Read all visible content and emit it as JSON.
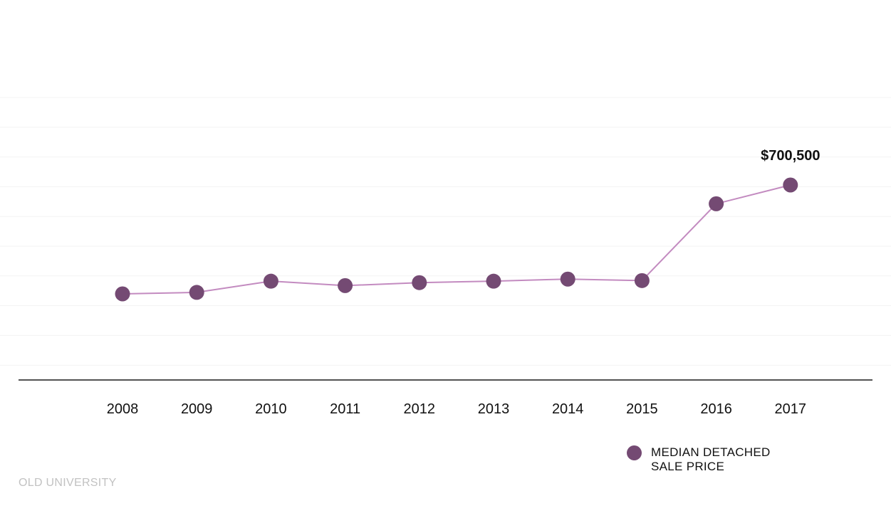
{
  "chart_data": {
    "type": "line",
    "x": [
      "2008",
      "2009",
      "2010",
      "2011",
      "2012",
      "2013",
      "2014",
      "2015",
      "2016",
      "2017"
    ],
    "series": [
      {
        "name": "MEDIAN DETACHED SALE PRICE",
        "values": [
          332000,
          337000,
          375000,
          360000,
          370000,
          375000,
          382000,
          377000,
          637000,
          700500
        ]
      }
    ],
    "annotations": [
      {
        "x": "2017",
        "text": "$700,500"
      }
    ],
    "legend": {
      "placement": "bottom-right",
      "label": "MEDIAN DETACHED SALE PRICE"
    },
    "grid": true,
    "colors": {
      "marker": "#744a73",
      "line": "#c38bc0",
      "grid": "#f3f3f3",
      "axis": "#1a1a1a"
    }
  },
  "source_label": "OLD UNIVERSITY"
}
